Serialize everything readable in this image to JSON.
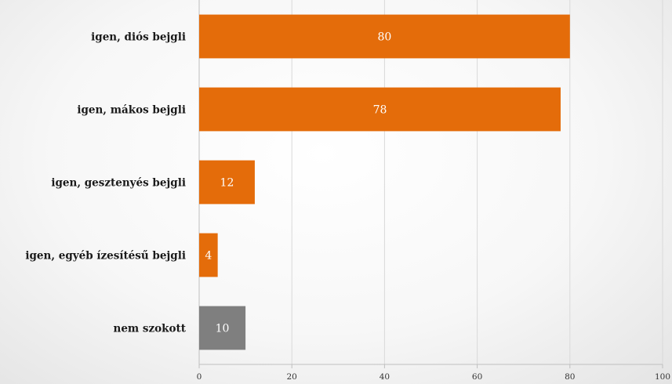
{
  "chart_data": {
    "type": "bar",
    "orientation": "horizontal",
    "title": "",
    "xlabel": "",
    "ylabel": "",
    "categories": [
      "igen, diós bejgli",
      "igen, mákos bejgli",
      "igen, gesztenyés bejgli",
      "igen, egyéb ízesítésű bejgli",
      "nem szokott"
    ],
    "values": [
      80,
      78,
      12,
      4,
      10
    ],
    "data_labels": [
      "80",
      "78",
      "12",
      "4",
      "10"
    ],
    "bar_colors": [
      "#e46c0a",
      "#e46c0a",
      "#e46c0a",
      "#e46c0a",
      "#7f7f7f"
    ],
    "xlim": [
      0,
      100
    ],
    "x_ticks": [
      0,
      20,
      40,
      60,
      80,
      100
    ],
    "x_tick_labels": [
      "0",
      "20",
      "40",
      "60",
      "80",
      "100"
    ],
    "grid": "vertical",
    "legend": "none"
  },
  "colors": {
    "accent": "#e46c0a",
    "neutral_bar": "#7f7f7f",
    "gridline": "#d9d9d9",
    "axis": "#bfbfbf"
  }
}
